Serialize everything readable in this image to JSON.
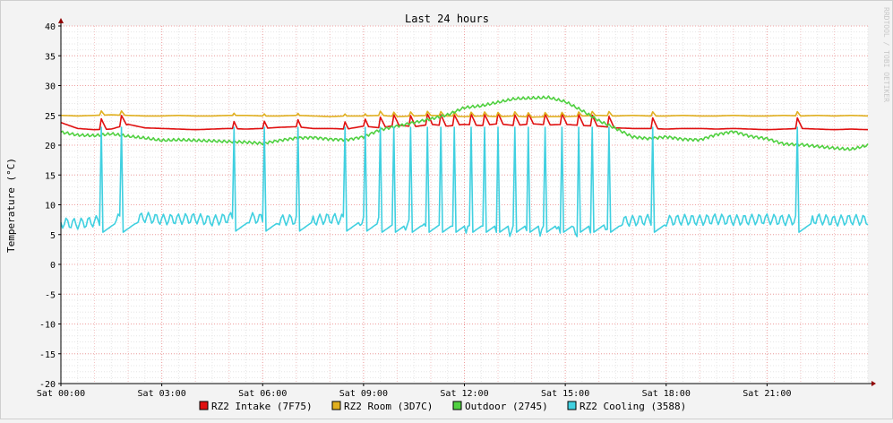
{
  "chart_data": {
    "type": "line",
    "title": "Last 24 hours",
    "ylabel": "Temperature (°C)",
    "xlabel": "",
    "watermark": "RRDTOOL / TOBI OETIKER",
    "ylim": [
      -20,
      40
    ],
    "y_ticks": [
      -20,
      -15,
      -10,
      -5,
      0,
      5,
      10,
      15,
      20,
      25,
      30,
      35,
      40
    ],
    "x_range_hours": [
      0,
      24
    ],
    "x_ticks": [
      {
        "hour": 0,
        "label": "Sat 00:00"
      },
      {
        "hour": 3,
        "label": "Sat 03:00"
      },
      {
        "hour": 6,
        "label": "Sat 06:00"
      },
      {
        "hour": 9,
        "label": "Sat 09:00"
      },
      {
        "hour": 12,
        "label": "Sat 12:00"
      },
      {
        "hour": 15,
        "label": "Sat 15:00"
      },
      {
        "hour": 18,
        "label": "Sat 18:00"
      },
      {
        "hour": 21,
        "label": "Sat 21:00"
      }
    ],
    "grid": true,
    "legend_position": "bottom",
    "x_hours": [
      0,
      0.5,
      1,
      1.5,
      2,
      2.5,
      3,
      3.5,
      4,
      4.5,
      5,
      5.5,
      6,
      6.5,
      7,
      7.5,
      8,
      8.5,
      9,
      9.5,
      10,
      10.5,
      11,
      11.5,
      12,
      12.5,
      13,
      13.5,
      14,
      14.5,
      15,
      15.5,
      16,
      16.5,
      17,
      17.5,
      18,
      18.5,
      19,
      19.5,
      20,
      20.5,
      21,
      21.5,
      22,
      22.5,
      23,
      23.5,
      24
    ],
    "series": [
      {
        "name": "RZ2 Intake (7F75)",
        "color": "#e01010",
        "values": [
          23.8,
          22.8,
          22.6,
          22.7,
          23.5,
          22.9,
          22.8,
          22.7,
          22.6,
          22.7,
          22.8,
          22.7,
          22.8,
          23.0,
          23.1,
          22.8,
          22.8,
          22.7,
          23.2,
          22.9,
          23.4,
          23.1,
          23.5,
          23.2,
          23.5,
          23.3,
          23.6,
          23.3,
          23.6,
          23.4,
          23.5,
          23.3,
          23.2,
          22.9,
          22.8,
          22.8,
          22.7,
          22.8,
          22.8,
          22.7,
          22.8,
          22.7,
          22.6,
          22.7,
          22.8,
          22.7,
          22.6,
          22.7,
          22.6
        ]
      },
      {
        "name": "RZ2 Room (3D7C)",
        "color": "#e0b020",
        "values": [
          25.0,
          24.9,
          25.0,
          25.1,
          25.0,
          24.9,
          24.9,
          25.0,
          24.9,
          24.9,
          25.0,
          25.0,
          24.9,
          24.9,
          25.0,
          24.9,
          24.8,
          24.9,
          24.9,
          25.0,
          24.8,
          24.9,
          25.0,
          24.9,
          24.8,
          24.9,
          24.8,
          24.9,
          24.7,
          24.8,
          24.8,
          24.9,
          25.0,
          24.9,
          25.0,
          24.9,
          24.9,
          25.0,
          24.9,
          24.9,
          25.0,
          24.9,
          24.9,
          25.0,
          24.9,
          25.0,
          24.9,
          25.0,
          24.9
        ]
      },
      {
        "name": "Outdoor (2745)",
        "color": "#50d040",
        "values": [
          22.2,
          21.7,
          21.6,
          21.9,
          21.5,
          21.2,
          20.8,
          20.9,
          20.8,
          20.7,
          20.6,
          20.5,
          20.3,
          20.8,
          21.2,
          21.3,
          21.0,
          20.9,
          21.4,
          22.6,
          23.2,
          23.8,
          24.4,
          25.1,
          26.3,
          26.6,
          27.2,
          27.8,
          27.9,
          28.0,
          27.3,
          25.8,
          24.1,
          22.8,
          21.4,
          21.1,
          21.4,
          21.0,
          20.9,
          21.8,
          22.3,
          21.5,
          21.1,
          20.2,
          20.1,
          19.8,
          19.5,
          19.3,
          20.0
        ]
      },
      {
        "name": "RZ2 Cooling (3588)",
        "color": "#40d0e0",
        "values": [
          7.0,
          6.8,
          7.2,
          7.8,
          7.4,
          7.9,
          7.5,
          7.6,
          7.7,
          7.3,
          7.8,
          7.9,
          7.6,
          7.4,
          7.5,
          7.4,
          7.7,
          7.5,
          7.3,
          7.1,
          6.8,
          6.5,
          6.2,
          6.0,
          5.8,
          5.7,
          5.6,
          5.6,
          5.5,
          5.6,
          5.4,
          5.6,
          6.0,
          7.2,
          7.3,
          7.5,
          7.3,
          7.5,
          7.4,
          7.6,
          7.4,
          7.5,
          7.6,
          7.4,
          7.5,
          7.6,
          7.3,
          7.5,
          7.4
        ]
      }
    ],
    "spikes_hours": {
      "RZ2 Cooling (3588)": [
        1.2,
        1.8,
        5.1,
        6.0,
        7.0,
        8.4,
        9.0,
        9.5,
        9.9,
        10.4,
        10.9,
        11.3,
        11.7,
        12.2,
        12.6,
        13.0,
        13.5,
        13.9,
        14.4,
        14.9,
        15.4,
        15.8,
        16.3,
        17.6,
        21.9
      ],
      "RZ2 Intake (7F75)": [
        1.2,
        1.8,
        5.1,
        6.0,
        7.0,
        8.4,
        9.0,
        9.5,
        9.9,
        10.4,
        10.9,
        11.3,
        11.7,
        12.2,
        12.6,
        13.0,
        13.5,
        13.9,
        14.4,
        14.9,
        15.4,
        15.8,
        16.3,
        17.6,
        21.9
      ],
      "RZ2 Room (3D7C)": [
        1.2,
        1.8,
        5.1,
        6.0,
        7.0,
        8.4,
        9.0,
        9.5,
        9.9,
        10.4,
        10.9,
        11.3,
        11.7,
        12.2,
        12.6,
        13.0,
        13.5,
        13.9,
        14.4,
        14.9,
        15.4,
        15.8,
        16.3,
        17.6,
        21.9
      ]
    }
  }
}
